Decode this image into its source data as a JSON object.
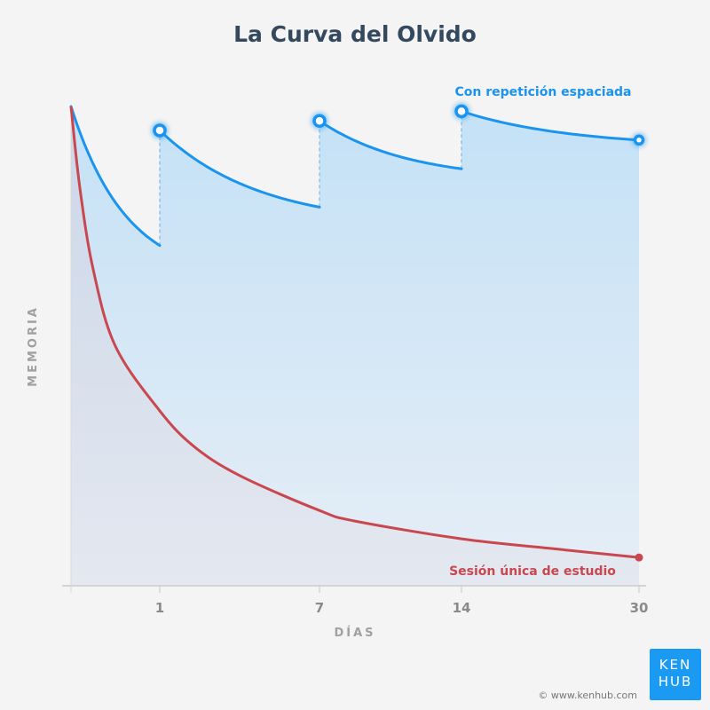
{
  "chart_data": {
    "type": "line",
    "title": "La Curva del Olvido",
    "xlabel": "DÍAS",
    "ylabel": "MEMORIA",
    "x_ticks": [
      "1",
      "7",
      "14",
      "30"
    ],
    "x_scale": "non-linear (compressed)",
    "xlim": [
      0,
      30
    ],
    "ylim": [
      0,
      100
    ],
    "grid": false,
    "series": [
      {
        "name": "Con repetición espaciada",
        "color": "#1a94ee",
        "segments": [
          {
            "x": [
              0,
              1
            ],
            "y": [
              100,
              71
            ]
          },
          {
            "x": [
              1,
              7
            ],
            "y": [
              95,
              79
            ]
          },
          {
            "x": [
              7,
              14
            ],
            "y": [
              97,
              87
            ]
          },
          {
            "x": [
              14,
              30
            ],
            "y": [
              99,
              93
            ]
          }
        ],
        "review_points": [
          {
            "x": 1,
            "y": 95
          },
          {
            "x": 7,
            "y": 97
          },
          {
            "x": 14,
            "y": 99
          },
          {
            "x": 30,
            "y": 93
          }
        ]
      },
      {
        "name": "Sesión única de estudio",
        "color": "#c9474f",
        "x": [
          0,
          0.1,
          0.25,
          0.5,
          1,
          2.3,
          4,
          7,
          8.75,
          14,
          22,
          30
        ],
        "y": [
          100,
          83,
          66,
          50,
          36.5,
          29,
          23,
          15.7,
          13.5,
          9.8,
          7.8,
          5.9
        ]
      }
    ]
  },
  "branding": {
    "logo_line1": "KEN",
    "logo_line2": "HUB",
    "copyright": "© www.kenhub.com"
  }
}
